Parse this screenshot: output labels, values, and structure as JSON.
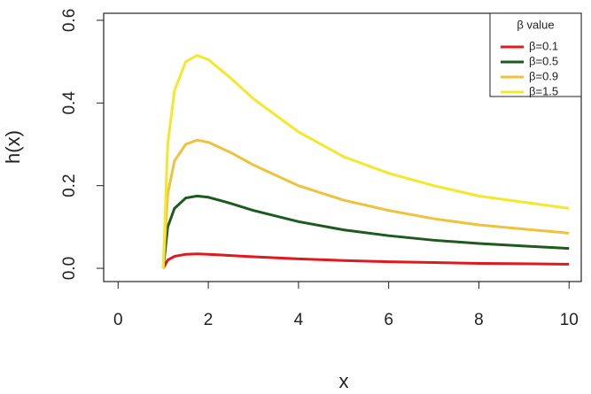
{
  "chart_data": {
    "type": "line",
    "x_label": "x",
    "y_label": "h(x)",
    "legend_title": "β value",
    "legend_position": "top-right",
    "x": [
      1,
      1.1,
      1.25,
      1.5,
      1.75,
      2,
      2.5,
      3,
      4,
      5,
      6,
      7,
      8,
      9,
      10
    ],
    "series": [
      {
        "name": "β=0.1",
        "color": "#e0191e",
        "values": [
          0,
          0.02,
          0.029,
          0.034,
          0.035,
          0.034,
          0.031,
          0.028,
          0.023,
          0.019,
          0.016,
          0.014,
          0.012,
          0.011,
          0.01
        ]
      },
      {
        "name": "β=0.5",
        "color": "#1d5a1d",
        "values": [
          0,
          0.1,
          0.145,
          0.17,
          0.175,
          0.172,
          0.157,
          0.14,
          0.113,
          0.093,
          0.079,
          0.068,
          0.06,
          0.054,
          0.048
        ]
      },
      {
        "name": "β=0.9",
        "color": "#efc23c",
        "values": [
          0,
          0.18,
          0.26,
          0.3,
          0.31,
          0.305,
          0.28,
          0.25,
          0.2,
          0.165,
          0.14,
          0.12,
          0.105,
          0.095,
          0.085
        ]
      },
      {
        "name": "β=1.5",
        "color": "#f4e82c",
        "values": [
          0,
          0.3,
          0.43,
          0.5,
          0.515,
          0.505,
          0.46,
          0.41,
          0.33,
          0.27,
          0.23,
          0.2,
          0.175,
          0.16,
          0.145
        ]
      }
    ],
    "xlim": [
      -0.32,
      10.27
    ],
    "ylim": [
      -0.032,
      0.617
    ],
    "xticks": [
      0,
      2,
      4,
      6,
      8,
      10
    ],
    "yticks": [
      {
        "value": 0,
        "label": "0.0"
      },
      0.2,
      0.4,
      0.6
    ]
  }
}
